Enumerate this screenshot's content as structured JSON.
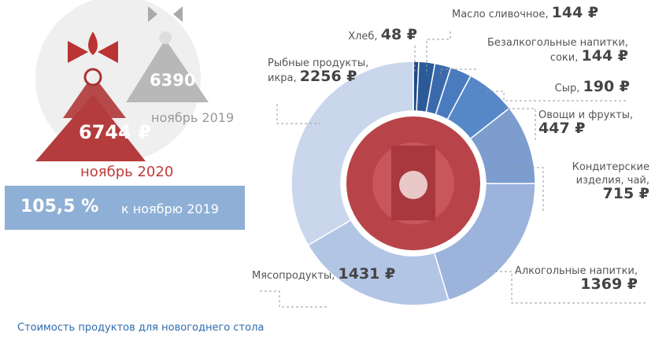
{
  "chart_data": {
    "type": "donut",
    "categories": [
      "Хлеб,",
      "Масло сливочное,",
      "Безалкогольные напитки, соки,",
      "Сыр,",
      "Овощи и фрукты,",
      "Кондитерские изделия, чай,",
      "Алкогольные напитки,",
      "Мясопродукты,",
      "Рыбные продукты, икра,"
    ],
    "values": [
      48,
      144,
      144,
      190,
      447,
      715,
      1369,
      1431,
      2256
    ],
    "value_labels": [
      "48 ₽",
      "144 ₽",
      "144 ₽",
      "190 ₽",
      "447 ₽",
      "715 ₽",
      "1369 ₽",
      "1431 ₽",
      "2256 ₽"
    ],
    "colors": [
      "#1f4a86",
      "#2c5a98",
      "#3a6aab",
      "#4a7bbe",
      "#5688c8",
      "#7d9dcf",
      "#9cb4dc",
      "#b3c5e4",
      "#c9d6ec"
    ]
  },
  "summary": {
    "prev_total": "6390 ₽",
    "prev_period": "ноябрь 2019",
    "total": "6744 ₽",
    "period": "ноябрь 2020",
    "change": "105,5 %",
    "change_label": "к ноябрю 2019",
    "caption": "Стоимость продуктов для новогоднего стола"
  }
}
